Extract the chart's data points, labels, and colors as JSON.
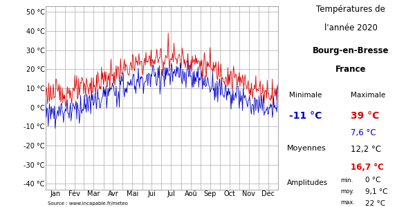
{
  "title_line1": "Températures de",
  "title_line2": "l'année 2020",
  "subtitle_line1": "Bourg-en-Bresse",
  "subtitle_line2": "France",
  "months": [
    "Jan",
    "Fév",
    "Mar",
    "Avr",
    "Mai",
    "Jui",
    "Jul",
    "Aoû",
    "Sep",
    "Oct",
    "Nov",
    "Déc"
  ],
  "yticks": [
    -40,
    -30,
    -20,
    -10,
    0,
    10,
    20,
    30,
    40,
    50
  ],
  "ytick_labels": [
    "-40 °C",
    "-30 °C",
    "-20 °C",
    "-10 °C",
    "0 °C",
    "10 °C",
    "20 °C",
    "30 °C",
    "40 °C",
    "50 °C"
  ],
  "ylim": [
    -43,
    53
  ],
  "color_max": "#dd0000",
  "color_min": "#0000cc",
  "color_black": "#000000",
  "bg_color": "#ffffff",
  "grid_color": "#aaaaaa",
  "legend_minimale": "Minimale",
  "legend_maximale": "Maximale",
  "val_min_abs": "-11 °C",
  "val_max_abs": "39 °C",
  "val_min_moy": "7,6 °C",
  "val_moy_moy": "12,2 °C",
  "val_max_moy": "16,7 °C",
  "amp_min": "0 °C",
  "amp_moy": "9,1 °C",
  "amp_max": "22 °C",
  "moyennes_label": "Moyennes",
  "amplitudes_label": "Amplitudes",
  "source_text": "Source : www.incapable.fr/meteo",
  "line_width": 0.6
}
